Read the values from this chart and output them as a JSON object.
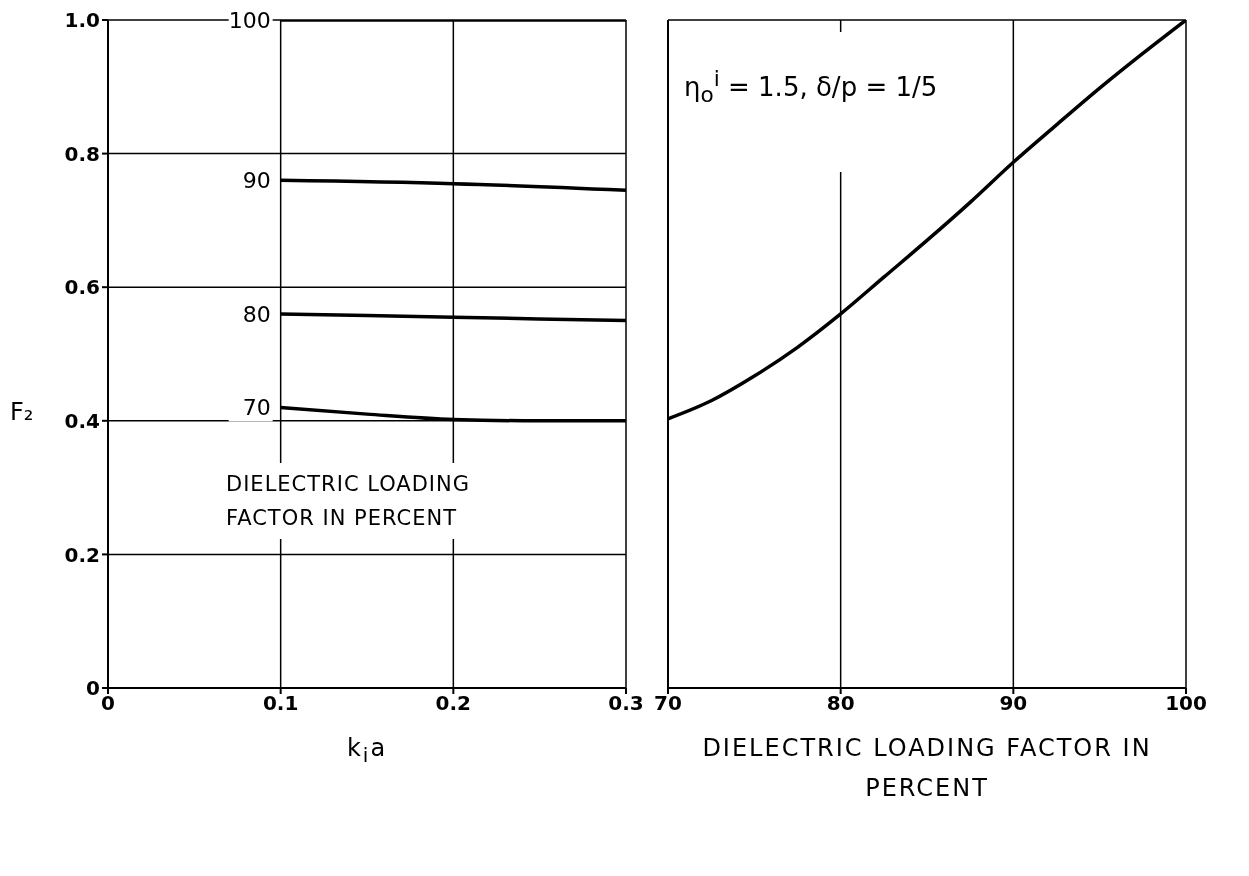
{
  "chart_data": [
    {
      "type": "line",
      "xlabel": "k$_{i}$a",
      "ylabel": "F₂",
      "xlim": [
        0,
        0.3
      ],
      "xticks": [
        0,
        0.1,
        0.2,
        0.3
      ],
      "ylim": [
        0,
        1.0
      ],
      "yticks": [
        0,
        0.2,
        0.4,
        0.6,
        0.8,
        {
          "value": 1.0,
          "label": "1.0"
        }
      ],
      "grid": true,
      "marker": "none",
      "line_style": "solid",
      "annotations": [
        "DIELECTRIC LOADING FACTOR IN PERCENT"
      ],
      "series": [
        {
          "name": "100",
          "color": "#000000",
          "x": [
            0.1,
            0.2,
            0.3
          ],
          "values": [
            1.0,
            1.0,
            1.0
          ]
        },
        {
          "name": "90",
          "color": "#000000",
          "x": [
            0.1,
            0.2,
            0.3
          ],
          "values": [
            0.76,
            0.755,
            0.745
          ]
        },
        {
          "name": "80",
          "color": "#000000",
          "x": [
            0.1,
            0.2,
            0.3
          ],
          "values": [
            0.56,
            0.555,
            0.55
          ]
        },
        {
          "name": "70",
          "color": "#000000",
          "x": [
            0.1,
            0.15,
            0.2,
            0.25,
            0.3
          ],
          "values": [
            0.42,
            0.41,
            0.402,
            0.4,
            0.4
          ]
        }
      ]
    },
    {
      "type": "line",
      "xlabel": "DIELECTRIC LOADING FACTOR IN PERCENT",
      "xlim": [
        70,
        100
      ],
      "xticks": [
        70,
        80,
        90,
        100
      ],
      "ylim": [
        0,
        1.0
      ],
      "yticks": [
        0,
        0.2,
        0.4,
        0.6,
        0.8,
        1.0
      ],
      "tick_labels": "x",
      "grid": true,
      "marker": "none",
      "line_style": "solid",
      "annotations": [
        "η$_{o}$$^{i}$ = 1.5, δ/p = 1/5"
      ],
      "series": [
        {
          "color": "#000000",
          "x": [
            70,
            72.5,
            75,
            77.5,
            80,
            82.5,
            85,
            87.5,
            90,
            92.5,
            95,
            97.5,
            100
          ],
          "values": [
            0.403,
            0.43,
            0.467,
            0.51,
            0.56,
            0.615,
            0.67,
            0.727,
            0.787,
            0.843,
            0.898,
            0.95,
            1.0
          ]
        }
      ]
    }
  ]
}
